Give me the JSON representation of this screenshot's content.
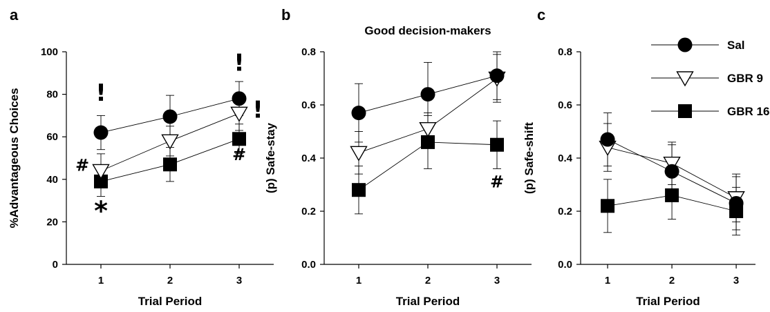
{
  "legend": [
    {
      "name": "Sal",
      "marker": "circle"
    },
    {
      "name": "GBR 9",
      "marker": "triangle-down"
    },
    {
      "name": "GBR 16",
      "marker": "square"
    }
  ],
  "chart_data": [
    {
      "panel": "a",
      "type": "line",
      "title": "",
      "xlabel": "Trial Period",
      "ylabel": "%Advantageous Choices",
      "x": [
        1,
        2,
        3
      ],
      "xticks": [
        "1",
        "2",
        "3"
      ],
      "ylim": [
        0,
        100
      ],
      "yticks": [
        "0",
        "20",
        "40",
        "60",
        "80",
        "100"
      ],
      "series": [
        {
          "name": "Sal",
          "marker": "circle",
          "values": [
            62,
            69.5,
            78
          ],
          "errors": [
            8,
            10,
            8
          ]
        },
        {
          "name": "GBR 9",
          "marker": "triangle-down",
          "values": [
            44,
            58,
            71
          ],
          "errors": [
            8,
            7,
            8
          ]
        },
        {
          "name": "GBR 16",
          "marker": "square",
          "values": [
            39,
            47,
            59
          ],
          "errors": [
            7,
            8,
            7
          ]
        }
      ],
      "annotations": [
        {
          "text": "!",
          "x": 1,
          "y": 77,
          "size": 34
        },
        {
          "text": "!",
          "x": 3,
          "y": 91,
          "size": 34
        },
        {
          "text": "!",
          "x": 3.27,
          "y": 69,
          "size": 34
        },
        {
          "text": "#",
          "x": 0.73,
          "y": 44,
          "size": 24
        },
        {
          "text": "#",
          "x": 3,
          "y": 49,
          "size": 24
        },
        {
          "text": "*",
          "x": 1,
          "y": 21,
          "size": 38
        }
      ]
    },
    {
      "panel": "b",
      "type": "line",
      "title": "Good decision-makers",
      "xlabel": "Trial Period",
      "ylabel": "(p) Safe-stay",
      "x": [
        1,
        2,
        3
      ],
      "xticks": [
        "1",
        "2",
        "3"
      ],
      "ylim": [
        0,
        0.8
      ],
      "yticks": [
        "0.0",
        "0.2",
        "0.4",
        "0.6",
        "0.8"
      ],
      "series": [
        {
          "name": "Sal",
          "marker": "circle",
          "values": [
            0.57,
            0.64,
            0.71
          ],
          "errors": [
            0.11,
            0.12,
            0.09
          ]
        },
        {
          "name": "GBR 9",
          "marker": "triangle-down",
          "values": [
            0.42,
            0.51,
            0.7
          ],
          "errors": [
            0.08,
            0.06,
            0.09
          ]
        },
        {
          "name": "GBR 16",
          "marker": "square",
          "values": [
            0.28,
            0.46,
            0.45
          ],
          "errors": [
            0.09,
            0.1,
            0.09
          ]
        }
      ],
      "annotations": [
        {
          "text": "#",
          "x": 3,
          "y": 0.29,
          "size": 24
        }
      ]
    },
    {
      "panel": "c",
      "type": "line",
      "title": "",
      "xlabel": "Trial Period",
      "ylabel": "(p) Safe-shift",
      "x": [
        1,
        2,
        3
      ],
      "xticks": [
        "1",
        "2",
        "3"
      ],
      "ylim": [
        0,
        0.8
      ],
      "yticks": [
        "0.0",
        "0.2",
        "0.4",
        "0.6",
        "0.8"
      ],
      "series": [
        {
          "name": "Sal",
          "marker": "circle",
          "values": [
            0.47,
            0.35,
            0.23
          ],
          "errors": [
            0.1,
            0.1,
            0.1
          ]
        },
        {
          "name": "GBR 9",
          "marker": "triangle-down",
          "values": [
            0.44,
            0.38,
            0.25
          ],
          "errors": [
            0.09,
            0.08,
            0.09
          ]
        },
        {
          "name": "GBR 16",
          "marker": "square",
          "values": [
            0.22,
            0.26,
            0.2
          ],
          "errors": [
            0.1,
            0.09,
            0.09
          ]
        }
      ],
      "annotations": []
    }
  ]
}
